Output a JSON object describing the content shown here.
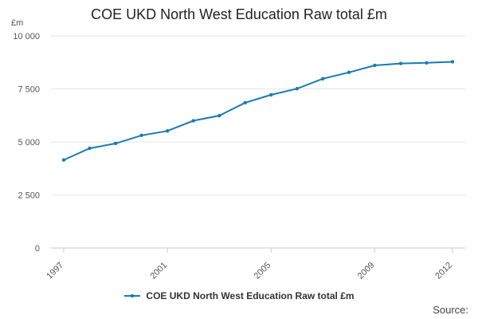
{
  "chart_data": {
    "type": "line",
    "title": "COE UKD North West Education Raw total £m",
    "ylabel": "£m",
    "xlabel": "",
    "ylim": [
      0,
      10000
    ],
    "yticks": [
      0,
      2500,
      5000,
      7500,
      10000
    ],
    "ytick_labels": [
      "0",
      "2 500",
      "5 000",
      "7 500",
      "10 000"
    ],
    "xlim": [
      1997,
      2012
    ],
    "xticks": [
      1997,
      2001,
      2005,
      2009,
      2012
    ],
    "xtick_labels": [
      "1997",
      "2001",
      "2005",
      "2009",
      "2012"
    ],
    "grid": true,
    "legend_position": "bottom",
    "x": [
      1997,
      1998,
      1999,
      2000,
      2001,
      2002,
      2003,
      2004,
      2005,
      2006,
      2007,
      2008,
      2009,
      2010,
      2011,
      2012
    ],
    "series": [
      {
        "name": "COE UKD North West Education Raw total £m",
        "color": "#1a7ab5",
        "values": [
          4150,
          4700,
          4930,
          5310,
          5520,
          6000,
          6240,
          6850,
          7220,
          7510,
          7980,
          8280,
          8610,
          8700,
          8730,
          8780
        ]
      }
    ]
  },
  "source_label": "Source:"
}
